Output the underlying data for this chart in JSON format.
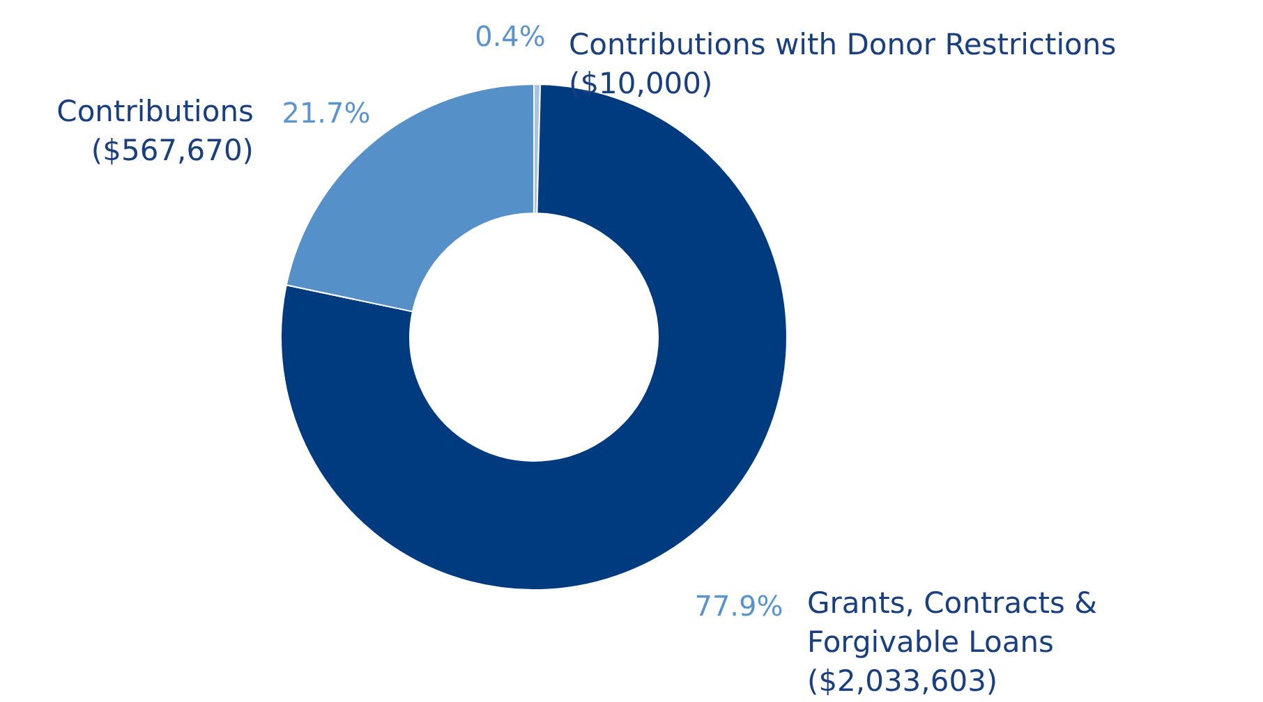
{
  "chart_data": {
    "type": "donut",
    "categories": [
      "Contributions with Donor Restrictions ($10,000)",
      "Grants, Contracts & Forgivable Loans ($2,033,603)",
      "Contributions ($567,670)"
    ],
    "values": [
      0.4,
      77.9,
      21.7
    ],
    "colors": [
      "#a9c4e2",
      "#003b80",
      "#5590c9"
    ],
    "value_labels": [
      "0.4%",
      "77.9%",
      "21.7%"
    ]
  }
}
